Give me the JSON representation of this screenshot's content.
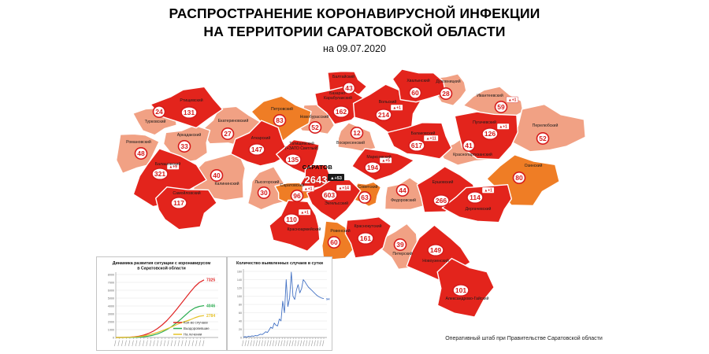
{
  "title": {
    "line1": "РАСПРОСТРАНЕНИЕ КОРОНАВИРУСНОЙ ИНФЕКЦИИ",
    "line2": "НА ТЕРРИТОРИИ САРАТОВСКОЙ ОБЛАСТИ",
    "date": "на 09.07.2020"
  },
  "credit": "Оперативный штаб при Правительстве Саратовской области",
  "colors": {
    "level_high": "#e3241c",
    "level_medium": "#ef7d25",
    "level_low": "#f1a184",
    "bubble_ring": "#d61b1b",
    "city_badge_bg": "#1a1a1a"
  },
  "map": {
    "districts": [
      {
        "id": "turkovsky",
        "name": "Турковский",
        "value": 24,
        "delta": null,
        "level": "low",
        "blob": [
          198,
          152,
          26,
          18
        ],
        "bubble": [
          202,
          142
        ],
        "label": [
          197,
          156
        ]
      },
      {
        "id": "rtishchevsky",
        "name": "Ртищевский",
        "value": 131,
        "delta": null,
        "level": "high",
        "blob": [
          240,
          136,
          40,
          24
        ],
        "bubble": [
          240,
          143
        ],
        "label": [
          243,
          129
        ]
      },
      {
        "id": "ekaterinovsky",
        "name": "Екатериновский",
        "value": 27,
        "delta": null,
        "level": "low",
        "blob": [
          294,
          162,
          34,
          26
        ],
        "bubble": [
          289,
          170
        ],
        "label": [
          296,
          155
        ]
      },
      {
        "id": "romanovsky",
        "name": "Романовский",
        "value": 48,
        "delta": null,
        "level": "low",
        "blob": [
          172,
          193,
          26,
          26
        ],
        "bubble": [
          179,
          195
        ],
        "label": [
          176,
          182
        ]
      },
      {
        "id": "arkadaksky",
        "name": "Аркадакский",
        "value": 33,
        "delta": null,
        "level": "low",
        "blob": [
          238,
          182,
          30,
          22
        ],
        "bubble": [
          234,
          186
        ],
        "label": [
          240,
          173
        ]
      },
      {
        "id": "atkarsky",
        "name": "Аткарский",
        "value": 147,
        "delta": null,
        "level": "high",
        "blob": [
          331,
          186,
          34,
          28
        ],
        "bubble": [
          326,
          190
        ],
        "label": [
          331,
          177
        ]
      },
      {
        "id": "balashovsky",
        "name": "Балашовский",
        "value": 321,
        "delta": "+9",
        "level": "high",
        "blob": [
          214,
          226,
          42,
          32
        ],
        "bubble": [
          203,
          221
        ],
        "label": [
          213,
          210
        ]
      },
      {
        "id": "samoylovsky",
        "name": "Самойловский",
        "value": 117,
        "delta": null,
        "level": "high",
        "blob": [
          233,
          263,
          40,
          26
        ],
        "bubble": [
          227,
          258
        ],
        "label": [
          237,
          247
        ]
      },
      {
        "id": "kalininsky",
        "name": "Калининский",
        "value": 40,
        "delta": null,
        "level": "low",
        "blob": [
          282,
          226,
          34,
          30
        ],
        "bubble": [
          275,
          223
        ],
        "label": [
          288,
          235
        ]
      },
      {
        "id": "lysogorsky",
        "name": "Лысогорский",
        "value": 30,
        "delta": null,
        "level": "low",
        "blob": [
          339,
          241,
          28,
          24
        ],
        "bubble": [
          335,
          245
        ],
        "label": [
          339,
          233
        ]
      },
      {
        "id": "petrovsky",
        "name": "Петровский",
        "value": 83,
        "delta": null,
        "level": "medium",
        "blob": [
          358,
          150,
          36,
          24
        ],
        "bubble": [
          355,
          153
        ],
        "label": [
          358,
          140
        ]
      },
      {
        "id": "tatishchevsky",
        "name": "Татищевский (+ЗАТО Светлый)",
        "name_lines": [
          "Татищевский",
          "(+ЗАТО Светлый)"
        ],
        "value": 135,
        "delta": null,
        "level": "high",
        "blob": [
          380,
          197,
          26,
          20
        ],
        "bubble": [
          372,
          203
        ],
        "label": [
          383,
          184
        ]
      },
      {
        "id": "novoburassky",
        "name": "Новобурасский",
        "value": 52,
        "delta": null,
        "level": "low",
        "blob": [
          401,
          152,
          25,
          18
        ],
        "bubble": [
          400,
          162
        ],
        "label": [
          399,
          150
        ]
      },
      {
        "id": "baltaysky",
        "name": "Балтайский",
        "value": 43,
        "delta": null,
        "level": "high",
        "blob": [
          438,
          107,
          25,
          17
        ],
        "bubble": [
          443,
          112
        ],
        "label": [
          436,
          99
        ]
      },
      {
        "id": "bazarno-karabulaksky",
        "name": "Базарно-Карабулакский",
        "name_lines": [
          "Базарно-",
          "Карабулакский"
        ],
        "value": 162,
        "delta": null,
        "level": "high",
        "blob": [
          433,
          132,
          32,
          22
        ],
        "bubble": [
          433,
          142
        ],
        "label": [
          429,
          120
        ]
      },
      {
        "id": "volsky",
        "name": "Вольский",
        "value": 214,
        "delta": "+1",
        "level": "high",
        "blob": [
          492,
          139,
          42,
          27
        ],
        "bubble": [
          487,
          146
        ],
        "label": [
          492,
          131
        ]
      },
      {
        "id": "voskresensky",
        "name": "Воскресенский",
        "value": 12,
        "delta": null,
        "level": "low",
        "blob": [
          452,
          176,
          25,
          17
        ],
        "bubble": [
          453,
          169
        ],
        "label": [
          445,
          183
        ]
      },
      {
        "id": "khvalynsky",
        "name": "Хвалынский",
        "value": 60,
        "delta": null,
        "level": "high",
        "blob": [
          530,
          109,
          31,
          21
        ],
        "bubble": [
          527,
          118
        ],
        "label": [
          531,
          104
        ]
      },
      {
        "id": "dukhovnitsky",
        "name": "Духовницкий",
        "value": 28,
        "delta": null,
        "level": "low",
        "blob": [
          570,
          113,
          24,
          19
        ],
        "bubble": [
          566,
          119
        ],
        "label": [
          569,
          105
        ]
      },
      {
        "id": "ivanteevsky",
        "name": "Ивантеевский",
        "value": 59,
        "delta": "+1",
        "level": "low",
        "blob": [
          628,
          131,
          33,
          19
        ],
        "bubble": [
          636,
          136
        ],
        "label": [
          622,
          123
        ]
      },
      {
        "id": "perelyubsky",
        "name": "Перелюбский",
        "value": 52,
        "delta": null,
        "level": "low",
        "blob": [
          695,
          166,
          44,
          32
        ],
        "bubble": [
          689,
          176
        ],
        "label": [
          692,
          161
        ]
      },
      {
        "id": "pugachevsky",
        "name": "Пугачевский",
        "value": 126,
        "delta": "+1",
        "level": "high",
        "blob": [
          618,
          169,
          40,
          31
        ],
        "bubble": [
          622,
          170
        ],
        "label": [
          615,
          157
        ]
      },
      {
        "id": "balakovsky",
        "name": "Балаковский",
        "value": 617,
        "delta": "+11",
        "level": "high",
        "blob": [
          535,
          179,
          37,
          25
        ],
        "bubble": [
          529,
          185
        ],
        "label": [
          537,
          171
        ]
      },
      {
        "id": "krasnopartizansky",
        "name": "Краснопартизанский",
        "value": 41,
        "delta": null,
        "level": "low",
        "blob": [
          597,
          192,
          35,
          17
        ],
        "bubble": [
          595,
          185
        ],
        "label": [
          600,
          198
        ]
      },
      {
        "id": "marksovsky",
        "name": "Марксовский",
        "value": 194,
        "delta": "+5",
        "level": "high",
        "blob": [
          482,
          208,
          35,
          19
        ],
        "bubble": [
          473,
          213
        ],
        "label": [
          481,
          201
        ]
      },
      {
        "id": "sovetsky",
        "name": "Советский",
        "value": 63,
        "delta": null,
        "level": "medium",
        "blob": [
          466,
          246,
          16,
          16
        ],
        "bubble": [
          463,
          251
        ],
        "label": [
          467,
          239
        ]
      },
      {
        "id": "fedorovsky",
        "name": "Федоровский",
        "value": 44,
        "delta": null,
        "level": "low",
        "blob": [
          513,
          249,
          25,
          21
        ],
        "bubble": [
          511,
          242
        ],
        "label": [
          512,
          256
        ]
      },
      {
        "id": "ershovsky",
        "name": "Ершовский",
        "value": 266,
        "delta": null,
        "level": "high",
        "blob": [
          565,
          243,
          37,
          27
        ],
        "bubble": [
          560,
          255
        ],
        "label": [
          562,
          233
        ]
      },
      {
        "id": "ozinsky",
        "name": "Озинский",
        "value": 80,
        "delta": null,
        "level": "medium",
        "blob": [
          665,
          229,
          41,
          31
        ],
        "bubble": [
          659,
          226
        ],
        "label": [
          677,
          212
        ]
      },
      {
        "id": "dergachevsky",
        "name": "Дергачевский",
        "value": 114,
        "delta": "+1",
        "level": "high",
        "blob": [
          610,
          258,
          41,
          25
        ],
        "bubble": [
          603,
          251
        ],
        "label": [
          607,
          267
        ]
      },
      {
        "id": "saratov",
        "name": "САРАТОВ",
        "value": 2643,
        "delta": "+53",
        "level": "high",
        "city": true,
        "blob": [
          402,
          226,
          20,
          15
        ],
        "bubble": [
          401,
          229
        ],
        "label": [
          403,
          215
        ]
      },
      {
        "id": "saratovsky",
        "name": "Саратовский",
        "value": 96,
        "delta": "+1",
        "level": "medium",
        "blob": [
          375,
          244,
          27,
          13
        ],
        "bubble": [
          377,
          249
        ],
        "label": [
          371,
          237
        ]
      },
      {
        "id": "engelssky",
        "name": "Энгельсский",
        "value": 603,
        "delta": "+14",
        "level": "high",
        "blob": [
          423,
          252,
          31,
          23
        ],
        "bubble": [
          418,
          248
        ],
        "label": [
          427,
          260
        ]
      },
      {
        "id": "krasnoarmeysky",
        "name": "Красноармейский",
        "value": 110,
        "delta": "+1",
        "level": "high",
        "blob": [
          378,
          287,
          35,
          29
        ],
        "bubble": [
          370,
          279
        ],
        "label": [
          386,
          293
        ]
      },
      {
        "id": "rovensky",
        "name": "Ровенский",
        "value": 60,
        "delta": null,
        "level": "medium",
        "blob": [
          427,
          307,
          21,
          25
        ],
        "bubble": [
          424,
          308
        ],
        "label": [
          432,
          295
        ]
      },
      {
        "id": "krasnokutsky",
        "name": "Краснокутский",
        "value": 161,
        "delta": null,
        "level": "high",
        "blob": [
          467,
          300,
          31,
          25
        ],
        "bubble": [
          464,
          303
        ],
        "label": [
          467,
          289
        ]
      },
      {
        "id": "pitersky",
        "name": "Питерский",
        "value": 39,
        "delta": null,
        "level": "low",
        "blob": [
          511,
          314,
          25,
          25
        ],
        "bubble": [
          508,
          311
        ],
        "label": [
          511,
          324
        ]
      },
      {
        "id": "novouzensky",
        "name": "Новоузенский",
        "value": 149,
        "delta": null,
        "level": "high",
        "blob": [
          555,
          325,
          37,
          31
        ],
        "bubble": [
          553,
          318
        ],
        "label": [
          553,
          333
        ]
      },
      {
        "id": "aleksandrovo-gaysky",
        "name": "Александрово-Гайский",
        "value": 101,
        "delta": null,
        "level": "high",
        "blob": [
          588,
          366,
          37,
          33
        ],
        "bubble": [
          585,
          369
        ],
        "label": [
          593,
          381
        ]
      }
    ]
  },
  "chart_data": [
    {
      "type": "line",
      "title": "Динамика развития ситуации с коронавирусом в Саратовской области",
      "title_lines": [
        "Динамика развития ситуации с коронавирусом",
        "в Саратовской области"
      ],
      "xlabel": "",
      "ylabel": "",
      "ylim": [
        0,
        8000
      ],
      "ytick_step": 1000,
      "grid": true,
      "legend_position": "bottom-right",
      "series": [
        {
          "name": "Кол-во случаев",
          "color": "#e02424",
          "end_label": "7325",
          "values": [
            0,
            5,
            15,
            40,
            90,
            170,
            300,
            500,
            780,
            1150,
            1600,
            2150,
            2800,
            3500,
            4250,
            5000,
            5750,
            6450,
            7000,
            7325
          ]
        },
        {
          "name": "Выздоровевшие",
          "color": "#2fae54",
          "end_label": "4046",
          "values": [
            0,
            0,
            2,
            8,
            20,
            45,
            90,
            170,
            290,
            460,
            700,
            1000,
            1380,
            1820,
            2320,
            2850,
            3380,
            3750,
            3950,
            4046
          ]
        },
        {
          "name": "На лечении",
          "color": "#e6c229",
          "end_label": "2784",
          "values": [
            0,
            5,
            13,
            32,
            70,
            125,
            205,
            320,
            470,
            660,
            860,
            1090,
            1330,
            1600,
            1850,
            2050,
            2250,
            2500,
            2700,
            2784
          ]
        }
      ]
    },
    {
      "type": "line",
      "title": "Количество выявленных случаев в сутки",
      "title_lines": [
        "Количество выявленных случаев в сутки"
      ],
      "xlabel": "",
      "ylabel": "",
      "ylim": [
        0,
        160
      ],
      "ytick_step": 20,
      "grid": true,
      "series": [
        {
          "name": "Количество выявленных случаев в сутки",
          "color": "#4472c4",
          "end_label": "94",
          "values": [
            1,
            2,
            1,
            3,
            2,
            4,
            3,
            5,
            4,
            6,
            8,
            7,
            10,
            14,
            12,
            18,
            25,
            22,
            35,
            30,
            28,
            45,
            40,
            88,
            60,
            140,
            75,
            95,
            158,
            100,
            92,
            115,
            128,
            108,
            118,
            140,
            135,
            128,
            122,
            118,
            114,
            110,
            106,
            102,
            99,
            97,
            95,
            94
          ]
        }
      ]
    }
  ]
}
